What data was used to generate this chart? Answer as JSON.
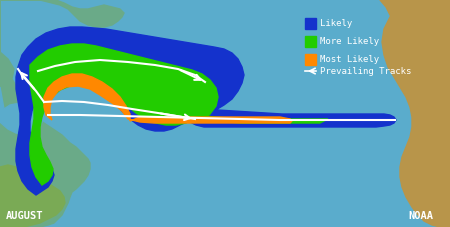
{
  "figsize": [
    4.5,
    2.27
  ],
  "dpi": 100,
  "ocean_color": "#5aaccc",
  "blue_zone_color": "#1432cc",
  "green_zone_color": "#22cc00",
  "orange_zone_color": "#ff8800",
  "track_color": "#ffffff",
  "text_color": "#ffffff",
  "title_aug": "AUGUST",
  "title_noaa": "NOAA",
  "legend_items": [
    {
      "color": "#1432cc",
      "label": "Likely"
    },
    {
      "color": "#22cc00",
      "label": "More Likely"
    },
    {
      "color": "#ff8800",
      "label": "Most Likely"
    }
  ],
  "prevailing_tracks_label": "Prevailing Tracks",
  "na_color": "#6aaa88",
  "africa_color": "#b8954a",
  "sa_color": "#7aaa55",
  "uk_color": "#7aaa77"
}
